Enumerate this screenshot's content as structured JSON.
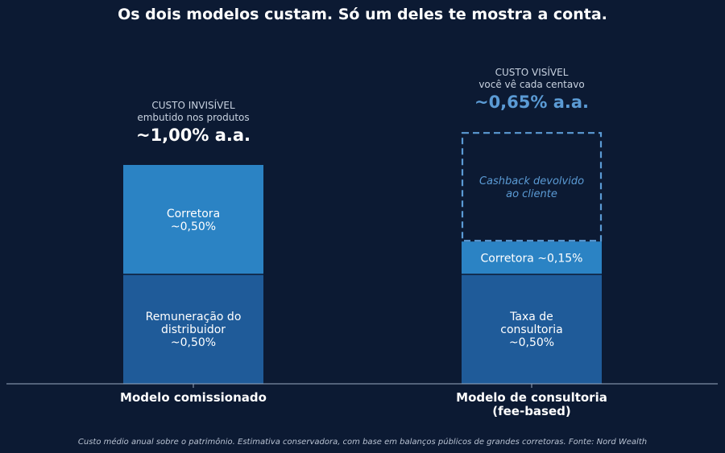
{
  "chart_data": {
    "type": "bar",
    "stacked": true,
    "title": "Os dois modelos custam. Só um deles te mostra a conta.",
    "ylim": [
      0,
      1.15
    ],
    "grid": false,
    "categories": [
      "Modelo comissionado",
      "Modelo de consultoria\n(fee-based)"
    ],
    "columns": [
      {
        "category": "Modelo comissionado",
        "header_label": "CUSTO INVISÍVEL",
        "header_sublabel": "embutido nos produtos",
        "total_label": "~1,00% a.a.",
        "total": 1.0,
        "segments": [
          {
            "label": "Remuneração do\ndistribuidor\n~0,50%",
            "value": 0.5,
            "color": "#1f5b99",
            "style": "solid"
          },
          {
            "label": "Corretora\n~0,50%",
            "value": 0.5,
            "color": "#2b83c4",
            "style": "solid"
          }
        ]
      },
      {
        "category": "Modelo de consultoria\n(fee-based)",
        "header_label": "CUSTO VISÍVEL",
        "header_sublabel": "você vê cada centavo",
        "total_label": "~0,65% a.a.",
        "total": 0.65,
        "segments": [
          {
            "label": "Taxa de\nconsultoria\n~0,50%",
            "value": 0.5,
            "color": "#1f5b99",
            "style": "solid"
          },
          {
            "label": "Corretora ~0,15%",
            "value": 0.15,
            "color": "#2b83c4",
            "style": "solid"
          },
          {
            "label": "Cashback devolvido\nao cliente",
            "value": 0.5,
            "color": "#5b9bd5",
            "style": "dashed"
          }
        ]
      }
    ],
    "footnote": "Custo médio anual sobre o patrimônio. Estimativa conservadora, com base em balanços públicos de grandes corretoras. Fonte: Nord Wealth"
  },
  "colors": {
    "background": "#0c1a33",
    "text": "#ffffff",
    "muted": "#c8d2e0",
    "accent": "#5b9bd5",
    "axis": "#9aa9c0"
  }
}
